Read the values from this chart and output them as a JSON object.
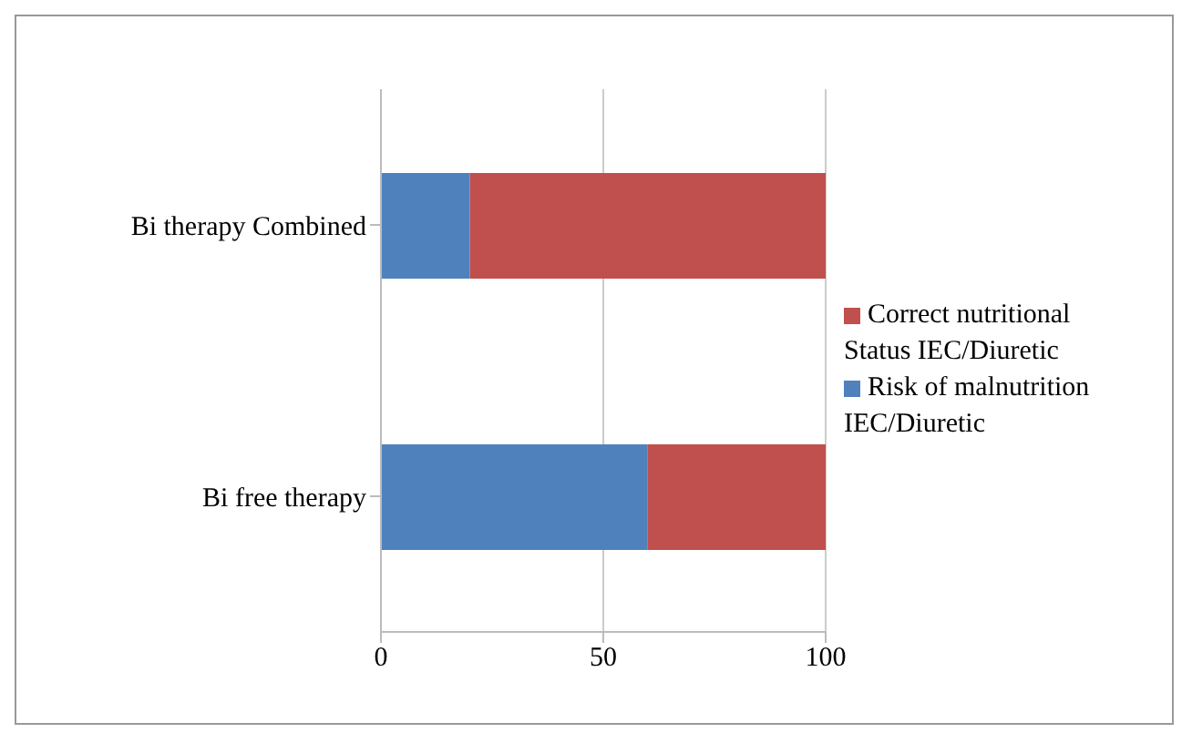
{
  "chart_data": {
    "type": "bar",
    "orientation": "horizontal",
    "stacked": true,
    "categories": [
      "Bi therapy Combined",
      "Bi free therapy"
    ],
    "series": [
      {
        "name": "Risk of malnutrition IEC/Diuretic",
        "color": "#4f81bd",
        "values": [
          20,
          60
        ]
      },
      {
        "name": "Correct nutritional Status IEC/Diuretic",
        "color": "#c0504d",
        "values": [
          80,
          40
        ]
      }
    ],
    "xlim": [
      0,
      100
    ],
    "xticks": [
      0,
      50,
      100
    ],
    "grid": "x",
    "legend": "right"
  }
}
